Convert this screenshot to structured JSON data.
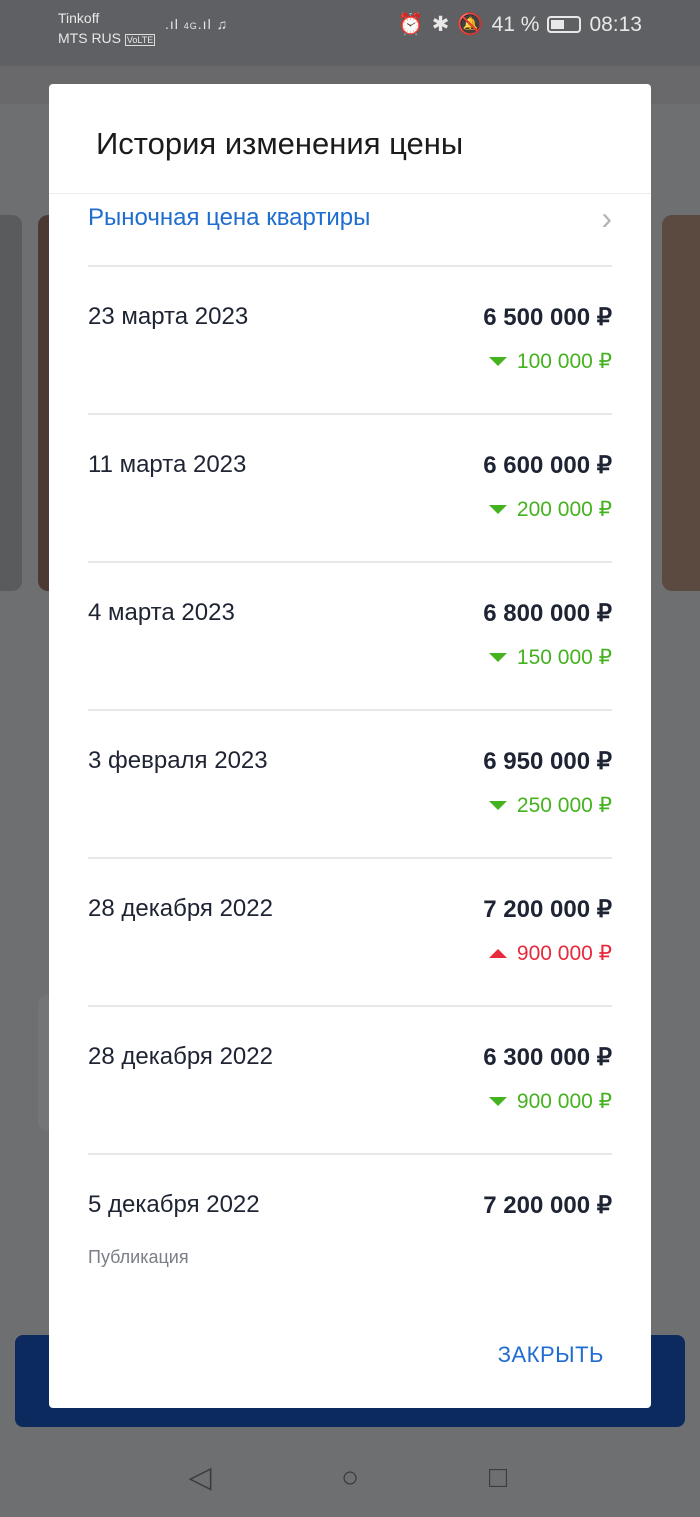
{
  "status_bar": {
    "carrier1": "Tinkoff",
    "carrier2": "MTS RUS",
    "volte": "VoLTE",
    "network": "4G",
    "battery_text": "41 %",
    "battery_level": 0.41,
    "time": "08:13"
  },
  "dialog": {
    "title": "История изменения цены",
    "market_link": "Рыночная цена квартиры",
    "rows": [
      {
        "date": "23 марта 2023",
        "price": "6 500 000 ₽",
        "delta": "100 000 ₽",
        "direction": "down"
      },
      {
        "date": "11 марта 2023",
        "price": "6 600 000 ₽",
        "delta": "200 000 ₽",
        "direction": "down"
      },
      {
        "date": "4 марта 2023",
        "price": "6 800 000 ₽",
        "delta": "150 000 ₽",
        "direction": "down"
      },
      {
        "date": "3 февраля 2023",
        "price": "6 950 000 ₽",
        "delta": "250 000 ₽",
        "direction": "down"
      },
      {
        "date": "28 декабря 2022",
        "price": "7 200 000 ₽",
        "delta": "900 000 ₽",
        "direction": "up"
      },
      {
        "date": "28 декабря 2022",
        "price": "6 300 000 ₽",
        "delta": "900 000 ₽",
        "direction": "down"
      },
      {
        "date": "5 декабря 2022",
        "price": "7 200 000 ₽",
        "note": "Публикация"
      }
    ],
    "close_label": "ЗАКРЫТЬ"
  },
  "colors": {
    "accent": "#1f6dd0",
    "decrease": "#45b21f",
    "increase": "#e8293b"
  }
}
